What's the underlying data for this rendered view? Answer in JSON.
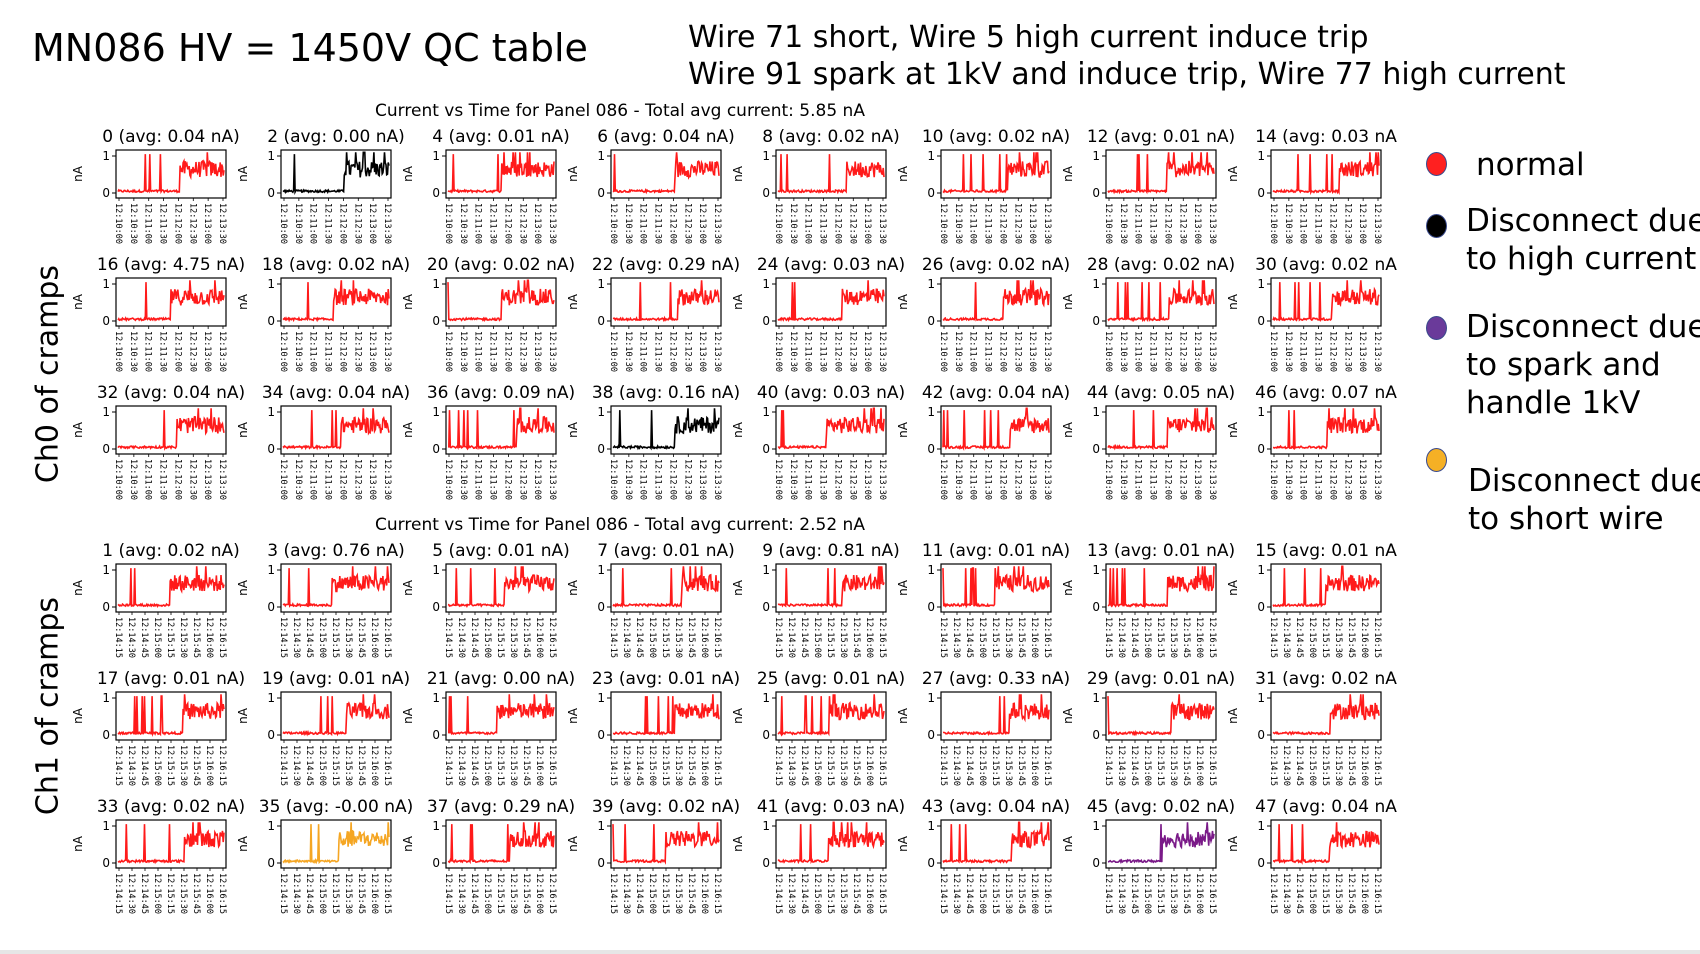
{
  "slide_title": "MN086 HV = 1450V QC table",
  "notes": [
    "Wire 71 short, Wire 5 high current induce trip",
    "Wire 91 spark at 1kV and induce trip, Wire 77 high current"
  ],
  "side_labels": {
    "ch0": "Ch0 of cramps",
    "ch1": "Ch1 of cramps"
  },
  "legend": [
    {
      "color": "#ff2020",
      "lines": [
        "normal"
      ]
    },
    {
      "color": "#000000",
      "lines": [
        "Disconnect due",
        "to high current"
      ]
    },
    {
      "color": "#6a3a9a",
      "lines": [
        "Disconnect due",
        "to spark and",
        "handle 1kV"
      ]
    },
    {
      "color": "#f5b025",
      "lines": [
        "Disconnect due",
        "to short wire"
      ]
    }
  ],
  "chart_data": [
    {
      "type": "line",
      "title": "Current vs Time for Panel 086 - Total avg current: 5.85 nA",
      "ylabel": "nA",
      "yticks": [
        "0",
        "1"
      ],
      "ylim": [
        0,
        1
      ],
      "xticks": [
        "12:10:00",
        "12:10:30",
        "12:11:00",
        "12:11:30",
        "12:12:00",
        "12:12:30",
        "12:13:00",
        "12:13:30"
      ],
      "panels": [
        {
          "wire": 0,
          "title": "0 (avg: 0.04 nA)",
          "color": "red"
        },
        {
          "wire": 2,
          "title": "2 (avg: 0.00 nA)",
          "color": "black"
        },
        {
          "wire": 4,
          "title": "4 (avg: 0.01 nA)",
          "color": "red"
        },
        {
          "wire": 6,
          "title": "6 (avg: 0.04 nA)",
          "color": "red"
        },
        {
          "wire": 8,
          "title": "8 (avg: 0.02 nA)",
          "color": "red"
        },
        {
          "wire": 10,
          "title": "10 (avg: 0.02 nA)",
          "color": "red"
        },
        {
          "wire": 12,
          "title": "12 (avg: 0.01 nA)",
          "color": "red"
        },
        {
          "wire": 14,
          "title": "14 (avg: 0.03 nA",
          "color": "red"
        },
        {
          "wire": 16,
          "title": "16 (avg: 4.75 nA)",
          "color": "red"
        },
        {
          "wire": 18,
          "title": "18 (avg: 0.02 nA)",
          "color": "red"
        },
        {
          "wire": 20,
          "title": "20 (avg: 0.02 nA)",
          "color": "red"
        },
        {
          "wire": 22,
          "title": "22 (avg: 0.29 nA)",
          "color": "red"
        },
        {
          "wire": 24,
          "title": "24 (avg: 0.03 nA)",
          "color": "red"
        },
        {
          "wire": 26,
          "title": "26 (avg: 0.02 nA)",
          "color": "red"
        },
        {
          "wire": 28,
          "title": "28 (avg: 0.02 nA)",
          "color": "red"
        },
        {
          "wire": 30,
          "title": "30 (avg: 0.02 nA",
          "color": "red"
        },
        {
          "wire": 32,
          "title": "32 (avg: 0.04 nA)",
          "color": "red"
        },
        {
          "wire": 34,
          "title": "34 (avg: 0.04 nA)",
          "color": "red"
        },
        {
          "wire": 36,
          "title": "36 (avg: 0.09 nA)",
          "color": "red"
        },
        {
          "wire": 38,
          "title": "38 (avg: 0.16 nA)",
          "color": "black"
        },
        {
          "wire": 40,
          "title": "40 (avg: 0.03 nA)",
          "color": "red"
        },
        {
          "wire": 42,
          "title": "42 (avg: 0.04 nA)",
          "color": "red"
        },
        {
          "wire": 44,
          "title": "44 (avg: 0.05 nA)",
          "color": "red"
        },
        {
          "wire": 46,
          "title": "46 (avg: 0.07 nA",
          "color": "red"
        }
      ]
    },
    {
      "type": "line",
      "title": "Current vs Time for Panel 086 - Total avg current: 2.52 nA",
      "ylabel": "nA",
      "yticks": [
        "0",
        "1"
      ],
      "ylim": [
        0,
        1
      ],
      "xticks": [
        "12:14:15",
        "12:14:30",
        "12:14:45",
        "12:15:00",
        "12:15:15",
        "12:15:30",
        "12:15:45",
        "12:16:00",
        "12:16:15"
      ],
      "panels": [
        {
          "wire": 1,
          "title": "1 (avg: 0.02 nA)",
          "color": "red"
        },
        {
          "wire": 3,
          "title": "3 (avg: 0.76 nA)",
          "color": "red"
        },
        {
          "wire": 5,
          "title": "5 (avg: 0.01 nA)",
          "color": "red"
        },
        {
          "wire": 7,
          "title": "7 (avg: 0.01 nA)",
          "color": "red"
        },
        {
          "wire": 9,
          "title": "9 (avg: 0.81 nA)",
          "color": "red"
        },
        {
          "wire": 11,
          "title": "11 (avg: 0.01 nA)",
          "color": "red"
        },
        {
          "wire": 13,
          "title": "13 (avg: 0.01 nA)",
          "color": "red"
        },
        {
          "wire": 15,
          "title": "15 (avg: 0.01 nA",
          "color": "red"
        },
        {
          "wire": 17,
          "title": "17 (avg: 0.01 nA)",
          "color": "red"
        },
        {
          "wire": 19,
          "title": "19 (avg: 0.01 nA)",
          "color": "red"
        },
        {
          "wire": 21,
          "title": "21 (avg: 0.00 nA)",
          "color": "red"
        },
        {
          "wire": 23,
          "title": "23 (avg: 0.01 nA)",
          "color": "red"
        },
        {
          "wire": 25,
          "title": "25 (avg: 0.01 nA)",
          "color": "red"
        },
        {
          "wire": 27,
          "title": "27 (avg: 0.33 nA)",
          "color": "red"
        },
        {
          "wire": 29,
          "title": "29 (avg: 0.01 nA)",
          "color": "red"
        },
        {
          "wire": 31,
          "title": "31 (avg: 0.02 nA",
          "color": "red"
        },
        {
          "wire": 33,
          "title": "33 (avg: 0.02 nA)",
          "color": "red"
        },
        {
          "wire": 35,
          "title": "35 (avg: -0.00 nA)",
          "color": "orange"
        },
        {
          "wire": 37,
          "title": "37 (avg: 0.29 nA)",
          "color": "red"
        },
        {
          "wire": 39,
          "title": "39 (avg: 0.02 nA)",
          "color": "red"
        },
        {
          "wire": 41,
          "title": "41 (avg: 0.03 nA)",
          "color": "red"
        },
        {
          "wire": 43,
          "title": "43 (avg: 0.04 nA)",
          "color": "red"
        },
        {
          "wire": 45,
          "title": "45 (avg: 0.02 nA)",
          "color": "purple"
        },
        {
          "wire": 47,
          "title": "47 (avg: 0.04 nA",
          "color": "red"
        }
      ]
    }
  ],
  "trace_colors": {
    "red": "#ff1a1a",
    "black": "#000000",
    "orange": "#f5a623",
    "purple": "#7a1a88"
  }
}
